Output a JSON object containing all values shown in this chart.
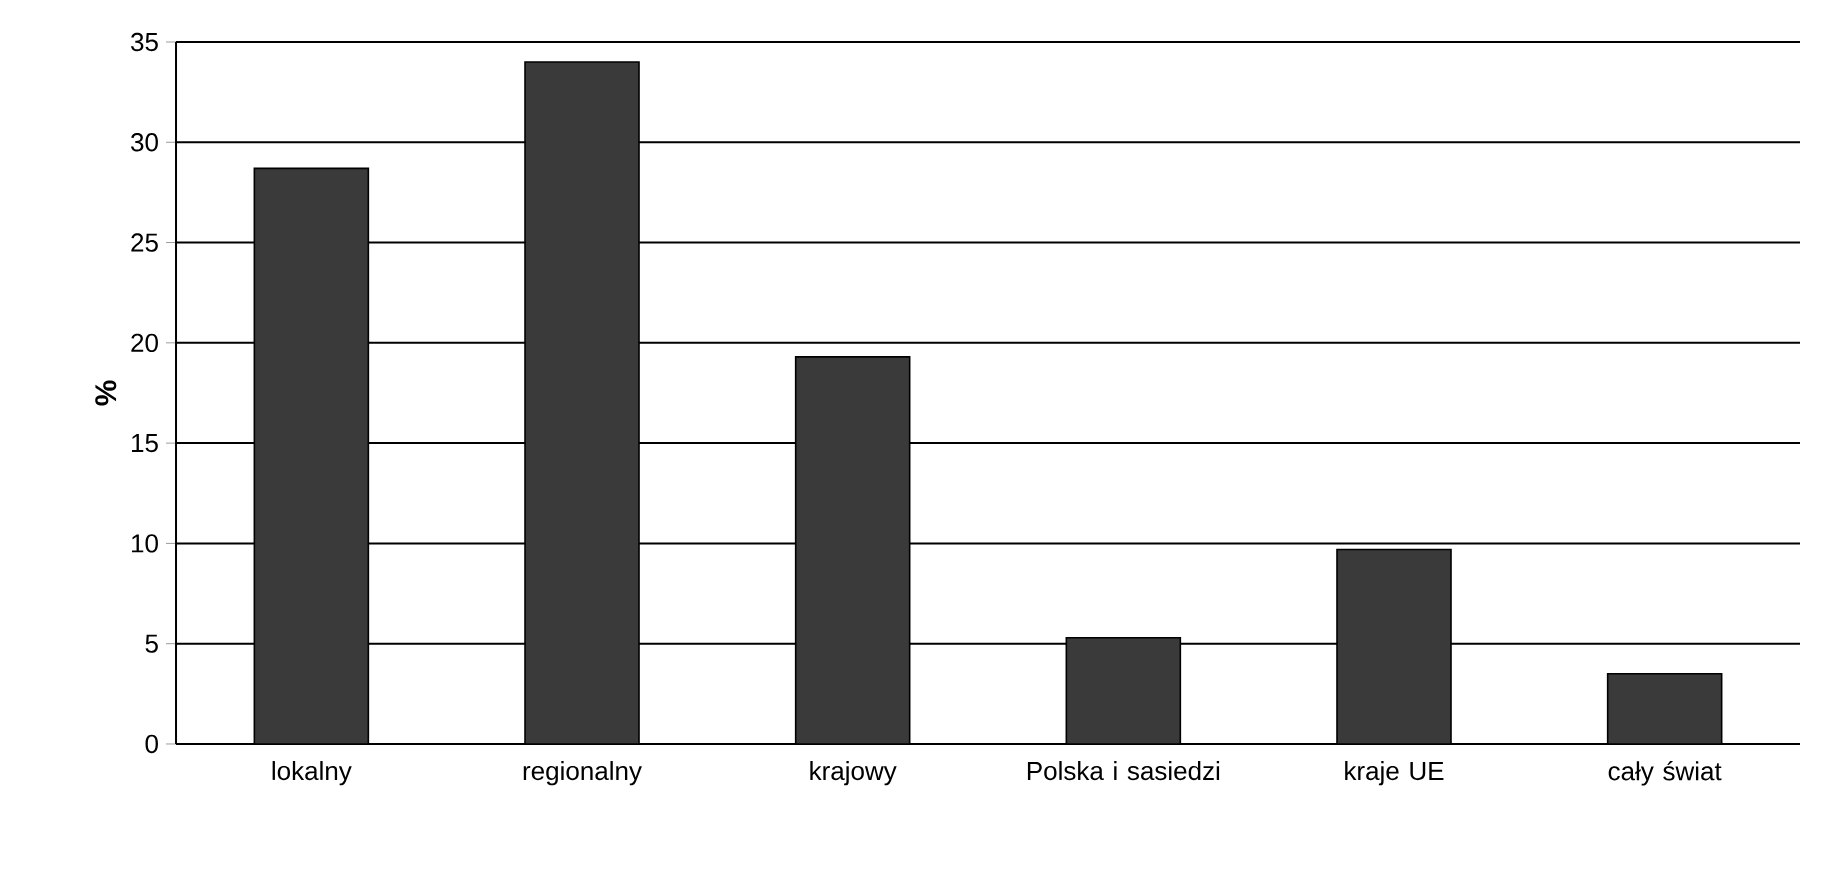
{
  "chart_data": {
    "type": "bar",
    "ylabel": "%",
    "categories": [
      "lokalny",
      "regionalny",
      "krajowy",
      "Polska i sasiedzi",
      "kraje UE",
      "cały świat"
    ],
    "values": [
      28.7,
      34.0,
      19.3,
      5.3,
      9.7,
      3.5
    ],
    "color": "#3a3a3a",
    "ylim": [
      0,
      35
    ],
    "yticks": [
      0,
      5,
      10,
      15,
      20,
      25,
      30,
      35
    ],
    "grid": "y"
  }
}
